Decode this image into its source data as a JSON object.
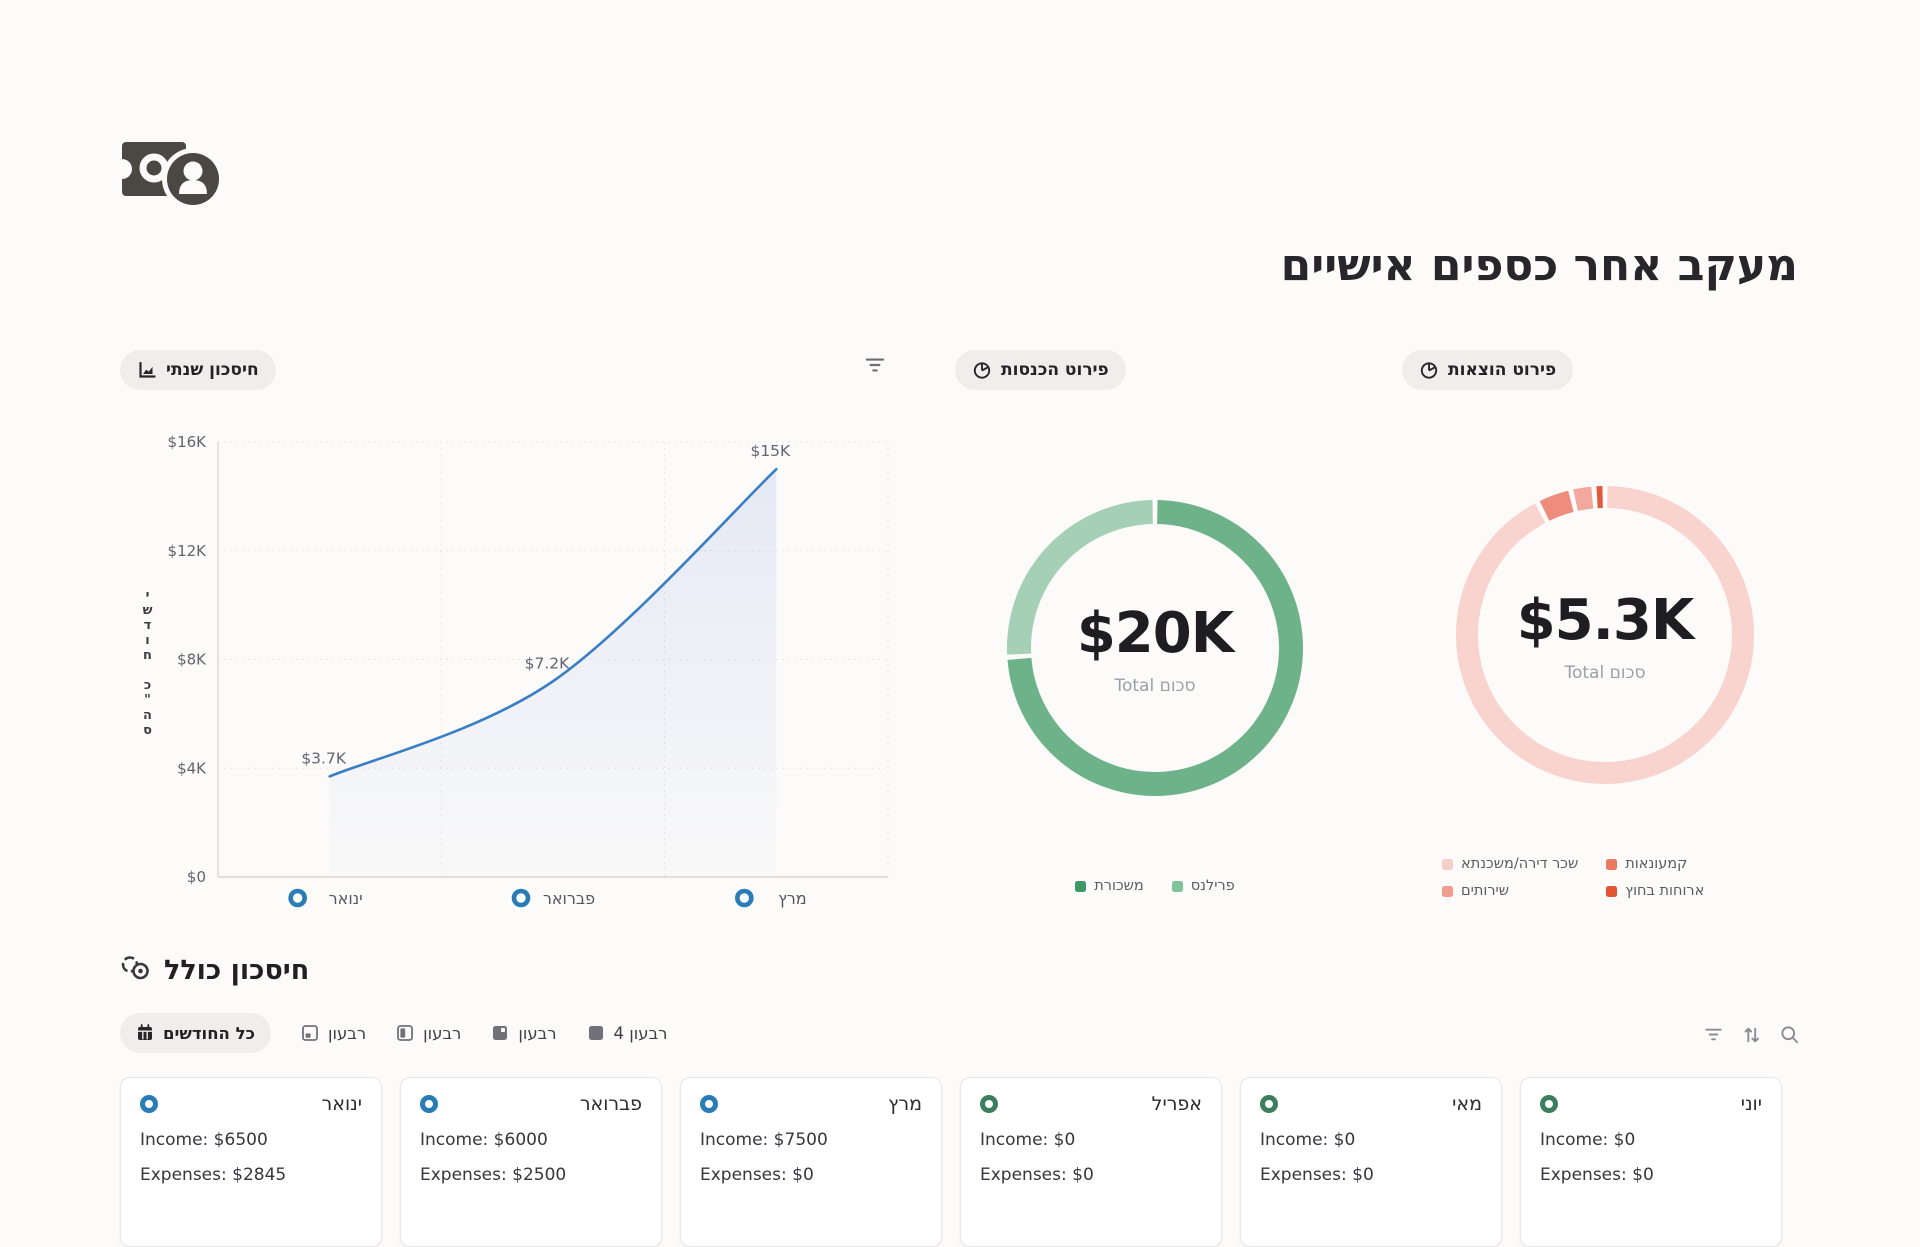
{
  "page": {
    "title": "מעקב אחר כספים אישיים"
  },
  "savings_card": {
    "chip_label": "חיסכון שנתי",
    "chip_icon": "area-chart",
    "filter_icon": "filter"
  },
  "income_card": {
    "chip_label": "פירוט הכנסות",
    "chip_icon": "pie-chart"
  },
  "expenses_card": {
    "chip_label": "פירוט הוצאות",
    "chip_icon": "pie-chart"
  },
  "section": {
    "title": "חיסכון כולל",
    "title_icon": "coins",
    "tabs": [
      {
        "label": "כל החודשים",
        "icon": "calendar",
        "active": true
      },
      {
        "label": "רבעון",
        "icon": "quarter-1",
        "active": false
      },
      {
        "label": "רבעון",
        "icon": "quarter-2",
        "active": false
      },
      {
        "label": "רבעון",
        "icon": "quarter-3",
        "active": false
      },
      {
        "label": "רבעון 4",
        "icon": "quarter-4",
        "active": false
      }
    ],
    "toolbar_icons": [
      "filter",
      "sort",
      "search"
    ]
  },
  "months": [
    {
      "name": "ינואר",
      "income_label": "Income: $6500",
      "expenses_label": "Expenses: $2845",
      "marker_color": "#297cb5"
    },
    {
      "name": "פברואר",
      "income_label": "Income: $6000",
      "expenses_label": "Expenses: $2500",
      "marker_color": "#297cb5"
    },
    {
      "name": "מרץ",
      "income_label": "Income: $7500",
      "expenses_label": "Expenses: $0",
      "marker_color": "#297cb5"
    },
    {
      "name": "אפריל",
      "income_label": "Income: $0",
      "expenses_label": "Expenses: $0",
      "marker_color": "#3d7d60"
    },
    {
      "name": "מאי",
      "income_label": "Income: $0",
      "expenses_label": "Expenses: $0",
      "marker_color": "#3d7d60"
    },
    {
      "name": "יוני",
      "income_label": "Income: $0",
      "expenses_label": "Expenses: $0",
      "marker_color": "#3d7d60"
    }
  ],
  "chart_data": [
    {
      "type": "line",
      "title": "חיסכון שנתי",
      "x": [
        "ינואר",
        "פברואר",
        "מרץ"
      ],
      "values": [
        3700,
        7200,
        15000
      ],
      "point_labels": [
        "$3.7K",
        "$7.2K",
        "$15K"
      ],
      "ylabel": "סה\"כ חודשי",
      "xlabel": "",
      "ylim": [
        0,
        16000
      ],
      "yticks": [
        {
          "v": 0,
          "label": "$0"
        },
        {
          "v": 4000,
          "label": "$4K"
        },
        {
          "v": 8000,
          "label": "$8K"
        },
        {
          "v": 12000,
          "label": "$12K"
        },
        {
          "v": 16000,
          "label": "$16K"
        }
      ],
      "grid": "dotted",
      "area_fill": true,
      "line_color": "#3a7ec5",
      "x_marker_color": "#297cb5",
      "legend_position": "none"
    },
    {
      "type": "donut",
      "title": "פירוט הכנסות",
      "total_label": "$20K",
      "center_sub": "סכום Total",
      "legend_position": "bottom",
      "series": [
        {
          "name": "משכורת",
          "fraction": 0.74,
          "color": "#6db289",
          "legend_color": "#3e9766"
        },
        {
          "name": "פרילנס",
          "fraction": 0.26,
          "color": "#a6d0b5",
          "legend_color": "#7fc398"
        }
      ]
    },
    {
      "type": "donut",
      "title": "פירוט הוצאות",
      "total_label": "$5.3K",
      "center_sub": "סכום Total",
      "legend_position": "bottom",
      "legend_columns": 2,
      "series": [
        {
          "name": "שכר דירה/משכנתא",
          "fraction": 0.925,
          "color": "#f9d3cd",
          "legend_color": "#f6cfc8"
        },
        {
          "name": "קמעונאות",
          "fraction": 0.038,
          "color": "#ee8d7d",
          "legend_color": "#e97a5f"
        },
        {
          "name": "שירותים",
          "fraction": 0.025,
          "color": "#f2a89d",
          "legend_color": "#f19d90"
        },
        {
          "name": "ארוחות בחוץ",
          "fraction": 0.012,
          "color": "#e25a3c",
          "legend_color": "#e25433"
        }
      ]
    }
  ]
}
